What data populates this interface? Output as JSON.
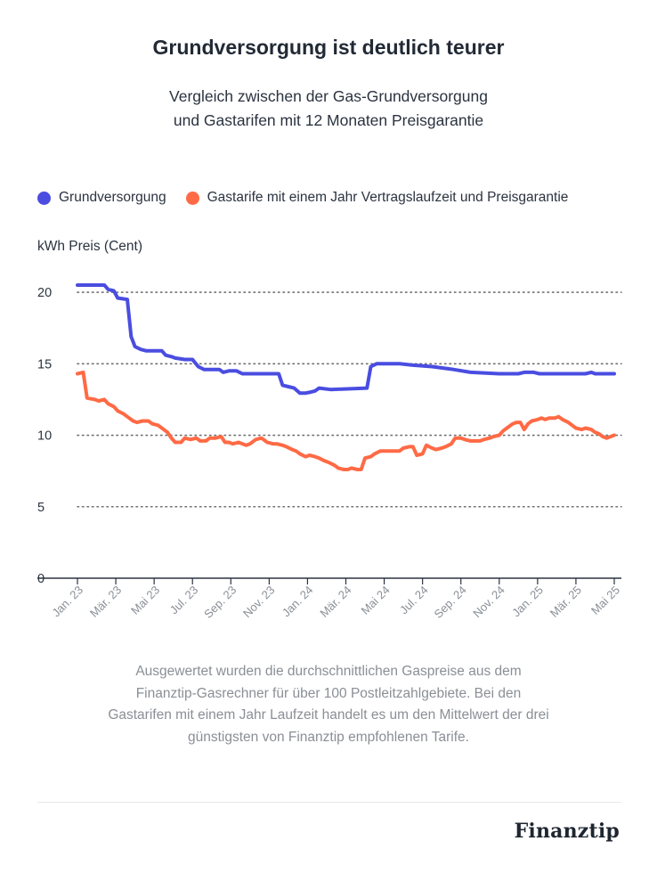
{
  "colors": {
    "grund": "#4a4de0",
    "gas": "#ff6a45",
    "grid": "#707070",
    "text": "#222a35",
    "muted": "#8a8f96"
  },
  "subtitle_lines": [
    "Vergleich zwischen der Gas-Grundversorgung",
    "und Gastarifen mit 12 Monaten Preisgarantie"
  ],
  "note_lines": [
    "Ausgewertet wurden die durchschnittlichen Gaspreise aus dem",
    "Finanztip-Gasrechner für über 100 Postleitzahlgebiete. Bei den",
    "Gastarifen mit einem Jahr Laufzeit handelt es um den Mittelwert der drei",
    "günstigsten von Finanztip empfohlenen Tarife."
  ],
  "brand": "Finanztip",
  "chart_data": {
    "type": "line",
    "title": "Grundversorgung ist deutlich teurer",
    "subtitle": "Vergleich zwischen der Gas-Grundversorgung und Gastarifen mit 12 Monaten Preisgarantie",
    "ylabel": "kWh Preis (Cent)",
    "xlabel": "",
    "ylim": [
      0,
      21
    ],
    "yticks": [
      0,
      5,
      10,
      15,
      20
    ],
    "xlim": [
      0,
      28
    ],
    "x_ticks": [
      {
        "x": 0,
        "label": "Jan. 23"
      },
      {
        "x": 2,
        "label": "Mär. 23"
      },
      {
        "x": 4,
        "label": "Mai 23"
      },
      {
        "x": 6,
        "label": "Jul. 23"
      },
      {
        "x": 8,
        "label": "Sep. 23"
      },
      {
        "x": 10,
        "label": "Nov. 23"
      },
      {
        "x": 12,
        "label": "Jan. 24"
      },
      {
        "x": 14,
        "label": "Mär. 24"
      },
      {
        "x": 16,
        "label": "Mai 24"
      },
      {
        "x": 18,
        "label": "Jul. 24"
      },
      {
        "x": 20,
        "label": "Sep. 24"
      },
      {
        "x": 22,
        "label": "Nov. 24"
      },
      {
        "x": 24,
        "label": "Jan. 25"
      },
      {
        "x": 26,
        "label": "Mär. 25"
      },
      {
        "x": 28,
        "label": "Mai 25"
      }
    ],
    "grid": "horizontal dotted",
    "legend": "top",
    "series": [
      {
        "name": "Grundversorgung",
        "color": "#4a4de0",
        "points": [
          [
            0,
            20.5
          ],
          [
            1.4,
            20.5
          ],
          [
            1.6,
            20.2
          ],
          [
            1.9,
            20.1
          ],
          [
            2.1,
            19.6
          ],
          [
            2.6,
            19.5
          ],
          [
            2.8,
            16.9
          ],
          [
            3.0,
            16.2
          ],
          [
            3.3,
            16.0
          ],
          [
            3.6,
            15.9
          ],
          [
            4.4,
            15.9
          ],
          [
            4.6,
            15.6
          ],
          [
            4.9,
            15.5
          ],
          [
            5.1,
            15.4
          ],
          [
            5.6,
            15.3
          ],
          [
            6.0,
            15.3
          ],
          [
            6.3,
            14.8
          ],
          [
            6.6,
            14.6
          ],
          [
            7.4,
            14.6
          ],
          [
            7.6,
            14.4
          ],
          [
            7.9,
            14.5
          ],
          [
            8.3,
            14.5
          ],
          [
            8.6,
            14.3
          ],
          [
            10.5,
            14.3
          ],
          [
            10.7,
            13.5
          ],
          [
            11.0,
            13.4
          ],
          [
            11.3,
            13.3
          ],
          [
            11.6,
            12.95
          ],
          [
            11.9,
            12.95
          ],
          [
            12.1,
            13.0
          ],
          [
            12.4,
            13.1
          ],
          [
            12.6,
            13.3
          ],
          [
            13.2,
            13.2
          ],
          [
            15.1,
            13.3
          ],
          [
            15.3,
            14.8
          ],
          [
            15.6,
            15.0
          ],
          [
            16.0,
            15.0
          ],
          [
            16.8,
            15.0
          ],
          [
            17.5,
            14.9
          ],
          [
            18.5,
            14.8
          ],
          [
            19.6,
            14.6
          ],
          [
            20.5,
            14.4
          ],
          [
            22.0,
            14.3
          ],
          [
            23.0,
            14.3
          ],
          [
            23.3,
            14.4
          ],
          [
            23.8,
            14.4
          ],
          [
            24.1,
            14.3
          ],
          [
            26.5,
            14.3
          ],
          [
            26.8,
            14.4
          ],
          [
            27.0,
            14.3
          ],
          [
            28.0,
            14.3
          ]
        ]
      },
      {
        "name": "Gastarife mit einem Jahr Vertragslaufzeit und Preisgarantie",
        "color": "#ff6a45",
        "points": [
          [
            0,
            14.3
          ],
          [
            0.3,
            14.4
          ],
          [
            0.5,
            12.6
          ],
          [
            0.9,
            12.5
          ],
          [
            1.1,
            12.4
          ],
          [
            1.4,
            12.5
          ],
          [
            1.6,
            12.2
          ],
          [
            1.9,
            12.0
          ],
          [
            2.1,
            11.7
          ],
          [
            2.4,
            11.5
          ],
          [
            2.6,
            11.3
          ],
          [
            2.9,
            11.0
          ],
          [
            3.1,
            10.9
          ],
          [
            3.4,
            11.0
          ],
          [
            3.7,
            11.0
          ],
          [
            3.9,
            10.8
          ],
          [
            4.2,
            10.7
          ],
          [
            4.4,
            10.5
          ],
          [
            4.7,
            10.2
          ],
          [
            4.9,
            9.8
          ],
          [
            5.1,
            9.5
          ],
          [
            5.4,
            9.5
          ],
          [
            5.6,
            9.8
          ],
          [
            5.9,
            9.7
          ],
          [
            6.2,
            9.8
          ],
          [
            6.4,
            9.6
          ],
          [
            6.7,
            9.6
          ],
          [
            6.9,
            9.8
          ],
          [
            7.2,
            9.8
          ],
          [
            7.5,
            9.9
          ],
          [
            7.7,
            9.5
          ],
          [
            7.9,
            9.5
          ],
          [
            8.1,
            9.4
          ],
          [
            8.4,
            9.5
          ],
          [
            8.6,
            9.4
          ],
          [
            8.8,
            9.3
          ],
          [
            9.0,
            9.4
          ],
          [
            9.3,
            9.7
          ],
          [
            9.6,
            9.8
          ],
          [
            9.9,
            9.5
          ],
          [
            10.2,
            9.4
          ],
          [
            10.4,
            9.4
          ],
          [
            10.7,
            9.3
          ],
          [
            10.9,
            9.2
          ],
          [
            11.2,
            9.0
          ],
          [
            11.4,
            8.9
          ],
          [
            11.6,
            8.7
          ],
          [
            11.9,
            8.5
          ],
          [
            12.1,
            8.6
          ],
          [
            12.4,
            8.5
          ],
          [
            12.6,
            8.4
          ],
          [
            12.9,
            8.2
          ],
          [
            13.1,
            8.1
          ],
          [
            13.4,
            7.9
          ],
          [
            13.6,
            7.7
          ],
          [
            13.9,
            7.6
          ],
          [
            14.1,
            7.6
          ],
          [
            14.3,
            7.7
          ],
          [
            14.6,
            7.6
          ],
          [
            14.8,
            7.6
          ],
          [
            15.0,
            8.4
          ],
          [
            15.3,
            8.5
          ],
          [
            15.5,
            8.7
          ],
          [
            15.8,
            8.9
          ],
          [
            16.1,
            8.9
          ],
          [
            16.3,
            8.9
          ],
          [
            16.6,
            8.9
          ],
          [
            16.8,
            8.9
          ],
          [
            17.0,
            9.1
          ],
          [
            17.3,
            9.2
          ],
          [
            17.5,
            9.2
          ],
          [
            17.7,
            8.6
          ],
          [
            18.0,
            8.7
          ],
          [
            18.2,
            9.3
          ],
          [
            18.5,
            9.1
          ],
          [
            18.7,
            9.0
          ],
          [
            19.0,
            9.1
          ],
          [
            19.2,
            9.2
          ],
          [
            19.5,
            9.4
          ],
          [
            19.7,
            9.8
          ],
          [
            20.0,
            9.8
          ],
          [
            20.2,
            9.7
          ],
          [
            20.5,
            9.6
          ],
          [
            20.7,
            9.6
          ],
          [
            21.0,
            9.6
          ],
          [
            21.2,
            9.7
          ],
          [
            21.5,
            9.8
          ],
          [
            21.7,
            9.9
          ],
          [
            22.0,
            10.0
          ],
          [
            22.2,
            10.3
          ],
          [
            22.4,
            10.5
          ],
          [
            22.7,
            10.8
          ],
          [
            22.9,
            10.9
          ],
          [
            23.1,
            10.9
          ],
          [
            23.3,
            10.4
          ],
          [
            23.5,
            10.8
          ],
          [
            23.7,
            11.0
          ],
          [
            24.0,
            11.1
          ],
          [
            24.2,
            11.2
          ],
          [
            24.4,
            11.1
          ],
          [
            24.6,
            11.2
          ],
          [
            24.9,
            11.2
          ],
          [
            25.1,
            11.3
          ],
          [
            25.3,
            11.1
          ],
          [
            25.6,
            10.9
          ],
          [
            25.8,
            10.7
          ],
          [
            26.0,
            10.5
          ],
          [
            26.3,
            10.4
          ],
          [
            26.5,
            10.5
          ],
          [
            26.8,
            10.4
          ],
          [
            27.0,
            10.2
          ],
          [
            27.2,
            10.1
          ],
          [
            27.4,
            9.9
          ],
          [
            27.6,
            9.8
          ],
          [
            27.8,
            9.9
          ],
          [
            28.0,
            10.0
          ]
        ]
      }
    ]
  }
}
